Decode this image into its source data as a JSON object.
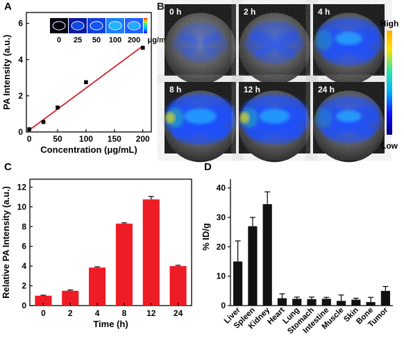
{
  "panels": {
    "A": "A",
    "B": "B",
    "C": "C",
    "D": "D"
  },
  "chart_data": [
    {
      "panel": "A",
      "type": "scatter",
      "x": [
        0,
        25,
        50,
        100,
        200
      ],
      "y": [
        0.15,
        0.55,
        1.35,
        2.75,
        4.65
      ],
      "yerr": [
        0.05,
        0.08,
        0.05,
        0.08,
        0.1
      ],
      "fit_line": {
        "x": [
          0,
          200
        ],
        "y": [
          0.1,
          4.75
        ],
        "color": "#d61f2a"
      },
      "xlabel": "Concentration (μg/mL)",
      "ylabel": "PA Intensity (a.u.)",
      "xticks": [
        "0",
        "50",
        "100",
        "150",
        "200"
      ],
      "yticks": [
        "0",
        "2",
        "4",
        "6"
      ],
      "xlim": [
        -5,
        215
      ],
      "ylim": [
        0,
        6.6
      ],
      "inset_labels": [
        "0",
        "25",
        "50",
        "100",
        "200"
      ],
      "inset_unit": "μg/mL"
    },
    {
      "panel": "B",
      "type": "heatmap",
      "timepoints": [
        "0 h",
        "2 h",
        "4 h",
        "8 h",
        "12 h",
        "24 h"
      ],
      "signal_level": [
        0.2,
        0.4,
        0.75,
        0.9,
        0.85,
        0.7
      ],
      "colorbar_labels": {
        "high": "High",
        "low": "Low"
      }
    },
    {
      "panel": "C",
      "type": "bar",
      "categories": [
        "0",
        "2",
        "4",
        "8",
        "12",
        "24"
      ],
      "values": [
        1.0,
        1.5,
        3.85,
        8.3,
        10.75,
        4.0
      ],
      "errors": [
        0.05,
        0.08,
        0.08,
        0.08,
        0.3,
        0.08
      ],
      "color": "#ee1c25",
      "xlabel": "Time (h)",
      "ylabel": "Relative PA Intensity (a.u.)",
      "yticks": [
        "0",
        "2",
        "4",
        "6",
        "8",
        "10",
        "12"
      ],
      "ylim": [
        0,
        12.8
      ]
    },
    {
      "panel": "D",
      "type": "bar",
      "categories": [
        "Liver",
        "Spleen",
        "Kidney",
        "Heart",
        "Lung",
        "Stomach",
        "Intestine",
        "Muscle",
        "Skin",
        "Bone",
        "Tumor"
      ],
      "values": [
        15.0,
        27.0,
        34.5,
        2.5,
        2.3,
        2.2,
        2.3,
        1.6,
        2.0,
        1.2,
        5.0
      ],
      "errors": [
        7.0,
        3.0,
        4.2,
        1.5,
        0.6,
        0.7,
        0.5,
        2.0,
        0.5,
        1.6,
        1.5
      ],
      "color": "#111111",
      "xlabel": "",
      "ylabel": "% ID/g",
      "yticks": [
        "0",
        "10",
        "20",
        "30",
        "40"
      ],
      "ylim": [
        0,
        43
      ]
    }
  ]
}
